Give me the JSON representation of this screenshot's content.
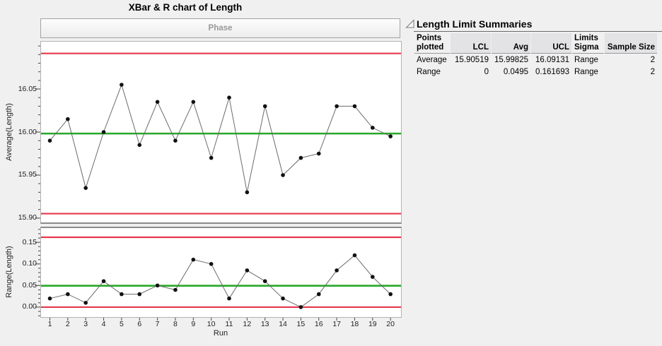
{
  "title": "XBar & R chart of Length",
  "phase_label": "Phase",
  "colors": {
    "limit_line": "#e5384f",
    "center_line": "#28a828",
    "series_line": "#6b6b6b",
    "point": "#111111"
  },
  "chart_data": [
    {
      "type": "line",
      "name": "xbar-chart",
      "ylabel": "Average(Length)",
      "x": [
        1,
        2,
        3,
        4,
        5,
        6,
        7,
        8,
        9,
        10,
        11,
        12,
        13,
        14,
        15,
        16,
        17,
        18,
        19,
        20
      ],
      "values": [
        15.99,
        16.015,
        15.935,
        16.0,
        16.055,
        15.985,
        16.035,
        15.99,
        16.035,
        15.97,
        16.04,
        15.93,
        16.03,
        15.95,
        15.97,
        15.975,
        16.03,
        16.03,
        16.005,
        15.995
      ],
      "center_line": 15.99825,
      "ucl": 16.09131,
      "lcl": 15.90519,
      "ylim": [
        15.895,
        16.105
      ],
      "yticks": [
        {
          "v": 15.9,
          "label": "15.90"
        },
        {
          "v": 15.95,
          "label": "15.95"
        },
        {
          "v": 16.0,
          "label": "16.00"
        },
        {
          "v": 16.05,
          "label": "16.05"
        }
      ],
      "minor_tick_step": 0.01,
      "grid": false,
      "legend": "none"
    },
    {
      "type": "line",
      "name": "range-chart",
      "ylabel": "Range(Length)",
      "xlabel": "Run",
      "x": [
        1,
        2,
        3,
        4,
        5,
        6,
        7,
        8,
        9,
        10,
        11,
        12,
        13,
        14,
        15,
        16,
        17,
        18,
        19,
        20
      ],
      "values": [
        0.02,
        0.03,
        0.01,
        0.06,
        0.03,
        0.03,
        0.05,
        0.04,
        0.11,
        0.1,
        0.02,
        0.085,
        0.06,
        0.02,
        0.0,
        0.03,
        0.085,
        0.12,
        0.07,
        0.03
      ],
      "center_line": 0.0495,
      "ucl": 0.161693,
      "lcl": 0,
      "ylim": [
        -0.023,
        0.183
      ],
      "yticks": [
        {
          "v": 0.0,
          "label": "0.00"
        },
        {
          "v": 0.05,
          "label": "0.05"
        },
        {
          "v": 0.1,
          "label": "0.10"
        },
        {
          "v": 0.15,
          "label": "0.15"
        }
      ],
      "minor_tick_step": 0.01,
      "grid": false,
      "legend": "none"
    }
  ],
  "summary_table": {
    "title": "Length Limit Summaries",
    "columns": [
      {
        "label": "Points plotted",
        "align": "left",
        "shaded": false
      },
      {
        "label": "LCL",
        "align": "right",
        "shaded": true
      },
      {
        "label": "Avg",
        "align": "right",
        "shaded": true
      },
      {
        "label": "UCL",
        "align": "right",
        "shaded": true
      },
      {
        "label": "Limits Sigma",
        "align": "left",
        "shaded": false
      },
      {
        "label": "Sample Size",
        "align": "right",
        "shaded": true
      }
    ],
    "rows": [
      {
        "cells": [
          "Average",
          "15.90519",
          "15.99825",
          "16.09131",
          "Range",
          "2"
        ]
      },
      {
        "cells": [
          "Range",
          "0",
          "0.0495",
          "0.161693",
          "Range",
          "2"
        ]
      }
    ]
  }
}
